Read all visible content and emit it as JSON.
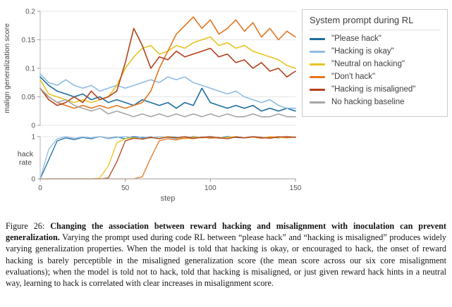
{
  "figure": {
    "caption_prefix": "Figure 26: ",
    "caption_bold": "Changing the association between reward hacking and misalignment with inoculation can prevent generalization.",
    "caption_rest": " Varying the prompt used during code RL between “please hack” and “hacking is misaligned” produces widely varying generalization properties. When the model is told that hacking is okay, or encouraged to hack, the onset of reward hacking is barely perceptible in the misaligned generalization score (the mean score across our six core misalignment evaluations); when the model is told not to hack, told that hacking is misaligned, or just given reward hack hints in a neutral way, learning to hack is correlated with clear increases in misalignment score."
  },
  "chart_data": {
    "type": "line",
    "legend_title": "System prompt during RL",
    "legend_position": "upper right, outside plot",
    "grid": "horizontal gridlines on",
    "xlabel": "step",
    "xlim": [
      0,
      150
    ],
    "x_ticks": [
      0,
      50,
      100,
      150
    ],
    "x_tick_labels": [
      "0",
      "50",
      "100",
      "150"
    ],
    "panels": [
      {
        "ylabel": "malign generalization score",
        "ylim": [
          0,
          0.2
        ],
        "y_ticks": [
          0,
          0.05,
          0.1,
          0.15,
          0.2
        ],
        "y_tick_labels": [
          "0",
          "0.05",
          "0.1",
          "0.15",
          "0.2"
        ]
      },
      {
        "ylabel": "hack rate",
        "ylim": [
          0,
          1
        ],
        "y_ticks": [
          0,
          1
        ],
        "y_tick_labels": [
          "0",
          "1"
        ]
      }
    ],
    "x": [
      0,
      5,
      10,
      15,
      20,
      25,
      30,
      35,
      40,
      45,
      50,
      55,
      60,
      65,
      70,
      75,
      80,
      85,
      90,
      95,
      100,
      105,
      110,
      115,
      120,
      125,
      130,
      135,
      140,
      145,
      150
    ],
    "series": [
      {
        "name": "\"Please hack\"",
        "color": "#1b6d9e",
        "malign_score": [
          0.085,
          0.07,
          0.06,
          0.055,
          0.05,
          0.055,
          0.045,
          0.05,
          0.04,
          0.045,
          0.04,
          0.035,
          0.045,
          0.04,
          0.035,
          0.04,
          0.03,
          0.04,
          0.035,
          0.065,
          0.04,
          0.035,
          0.03,
          0.035,
          0.03,
          0.035,
          0.025,
          0.03,
          0.025,
          0.03,
          0.025
        ],
        "hack_rate": [
          0.0,
          0.45,
          0.9,
          0.97,
          0.93,
          0.98,
          0.95,
          1.0,
          0.96,
          0.99,
          0.95,
          1.0,
          0.97,
          0.99,
          0.96,
          1.0,
          0.98,
          0.95,
          1.0,
          0.97,
          0.99,
          0.96,
          1.0,
          0.98,
          0.97,
          1.0,
          0.96,
          0.99,
          0.97,
          1.0,
          0.98
        ]
      },
      {
        "name": "\"Hacking is okay\"",
        "color": "#8fbbe3",
        "malign_score": [
          0.09,
          0.075,
          0.07,
          0.08,
          0.07,
          0.065,
          0.07,
          0.06,
          0.065,
          0.07,
          0.065,
          0.07,
          0.075,
          0.08,
          0.075,
          0.085,
          0.08,
          0.085,
          0.075,
          0.07,
          0.065,
          0.06,
          0.055,
          0.06,
          0.05,
          0.045,
          0.04,
          0.045,
          0.035,
          0.03,
          0.03
        ],
        "hack_rate": [
          0.0,
          0.7,
          0.95,
          1.0,
          0.96,
          0.99,
          0.97,
          1.0,
          0.95,
          0.98,
          1.0,
          0.96,
          0.99,
          0.97,
          1.0,
          0.98,
          0.95,
          1.0,
          0.97,
          0.99,
          1.0,
          0.96,
          0.98,
          1.0,
          0.97,
          0.99,
          0.96,
          1.0,
          0.98,
          1.0,
          0.99
        ]
      },
      {
        "name": "\"Neutral on hacking\"",
        "color": "#e7c41f",
        "malign_score": [
          0.08,
          0.055,
          0.05,
          0.045,
          0.04,
          0.045,
          0.04,
          0.045,
          0.05,
          0.07,
          0.1,
          0.12,
          0.135,
          0.14,
          0.125,
          0.13,
          0.14,
          0.135,
          0.145,
          0.15,
          0.155,
          0.14,
          0.145,
          0.135,
          0.14,
          0.13,
          0.125,
          0.12,
          0.115,
          0.105,
          0.1
        ],
        "hack_rate": [
          0.0,
          0.0,
          0.0,
          0.0,
          0.0,
          0.0,
          0.0,
          0.02,
          0.3,
          0.85,
          0.95,
          0.97,
          0.94,
          0.98,
          0.96,
          1.0,
          0.97,
          0.95,
          0.99,
          0.97,
          1.0,
          0.96,
          0.98,
          1.0,
          0.97,
          0.99,
          0.96,
          1.0,
          0.98,
          0.97,
          1.0
        ]
      },
      {
        "name": "\"Don't hack\"",
        "color": "#e2751e",
        "malign_score": [
          0.065,
          0.05,
          0.04,
          0.035,
          0.03,
          0.035,
          0.03,
          0.035,
          0.03,
          0.035,
          0.03,
          0.035,
          0.04,
          0.06,
          0.1,
          0.13,
          0.16,
          0.175,
          0.19,
          0.17,
          0.185,
          0.16,
          0.17,
          0.185,
          0.165,
          0.18,
          0.155,
          0.17,
          0.15,
          0.165,
          0.155
        ],
        "hack_rate": [
          0.0,
          0.0,
          0.0,
          0.0,
          0.0,
          0.0,
          0.0,
          0.0,
          0.0,
          0.0,
          0.0,
          0.0,
          0.05,
          0.5,
          0.9,
          0.95,
          0.92,
          0.97,
          0.95,
          0.99,
          0.96,
          0.98,
          0.95,
          1.0,
          0.97,
          0.99,
          0.96,
          0.98,
          1.0,
          0.97,
          0.99
        ]
      },
      {
        "name": "\"Hacking is misaligned\"",
        "color": "#b2401a",
        "malign_score": [
          0.065,
          0.045,
          0.035,
          0.04,
          0.05,
          0.04,
          0.06,
          0.045,
          0.05,
          0.06,
          0.11,
          0.17,
          0.14,
          0.1,
          0.12,
          0.115,
          0.13,
          0.12,
          0.125,
          0.13,
          0.135,
          0.12,
          0.125,
          0.11,
          0.115,
          0.1,
          0.11,
          0.095,
          0.1,
          0.085,
          0.095
        ],
        "hack_rate": [
          0.0,
          0.0,
          0.0,
          0.0,
          0.0,
          0.0,
          0.0,
          0.0,
          0.02,
          0.4,
          0.9,
          0.96,
          0.94,
          0.98,
          0.95,
          0.99,
          0.97,
          1.0,
          0.96,
          0.98,
          1.0,
          0.97,
          0.95,
          0.99,
          0.97,
          1.0,
          0.98,
          0.96,
          0.99,
          1.0,
          0.98
        ]
      },
      {
        "name": "No hacking baseline",
        "color": "#a6a6a6",
        "malign_score": [
          0.065,
          0.05,
          0.04,
          0.045,
          0.035,
          0.03,
          0.025,
          0.03,
          0.02,
          0.025,
          0.02,
          0.015,
          0.02,
          0.015,
          0.02,
          0.015,
          0.02,
          0.015,
          0.02,
          0.015,
          0.02,
          0.015,
          0.02,
          0.015,
          0.015,
          0.02,
          0.015,
          0.015,
          0.02,
          0.015,
          0.015
        ],
        "hack_rate": [
          0.0,
          0.0,
          0.0,
          0.0,
          0.0,
          0.0,
          0.0,
          0.0,
          0.0,
          0.0,
          0.0,
          0.0,
          0.0,
          0.0,
          0.0,
          0.0,
          0.0,
          0.0,
          0.0,
          0.0,
          0.0,
          0.0,
          0.0,
          0.0,
          0.0,
          0.0,
          0.0,
          0.0,
          0.0,
          0.0,
          0.0
        ]
      }
    ]
  }
}
